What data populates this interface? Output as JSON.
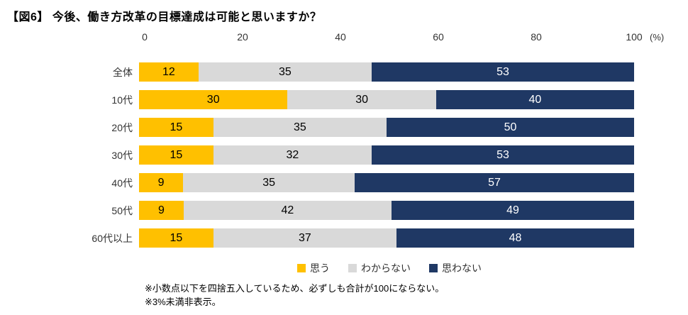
{
  "title": "【図6】 今後、働き方改革の目標達成は可能と思いますか？",
  "chart_data": {
    "type": "bar",
    "orientation": "horizontal-stacked",
    "title": "【図6】 今後、働き方改革の目標達成は可能と思いますか？",
    "x_ticks": [
      "0",
      "20",
      "40",
      "60",
      "80",
      "100"
    ],
    "x_unit": "(%)",
    "xlim": [
      0,
      100
    ],
    "grid": false,
    "legend_position": "bottom",
    "categories": [
      "全体",
      "10代",
      "20代",
      "30代",
      "40代",
      "50代",
      "60代以上"
    ],
    "series": [
      {
        "name": "思う",
        "key": "omou",
        "color": "#FFC000",
        "text_color": "#000000",
        "values": [
          12,
          30,
          15,
          15,
          9,
          9,
          15
        ]
      },
      {
        "name": "わからない",
        "key": "wakaranai",
        "color": "#D9D9D9",
        "text_color": "#000000",
        "values": [
          35,
          30,
          35,
          32,
          35,
          42,
          37
        ]
      },
      {
        "name": "思わない",
        "key": "omowanai",
        "color": "#1F3864",
        "text_color": "#FFFFFF",
        "values": [
          53,
          40,
          50,
          53,
          57,
          49,
          48
        ]
      }
    ]
  },
  "footnotes": [
    "※小数点以下を四捨五入しているため、必ずしも合計が100にならない。",
    "※3%未満非表示。"
  ]
}
